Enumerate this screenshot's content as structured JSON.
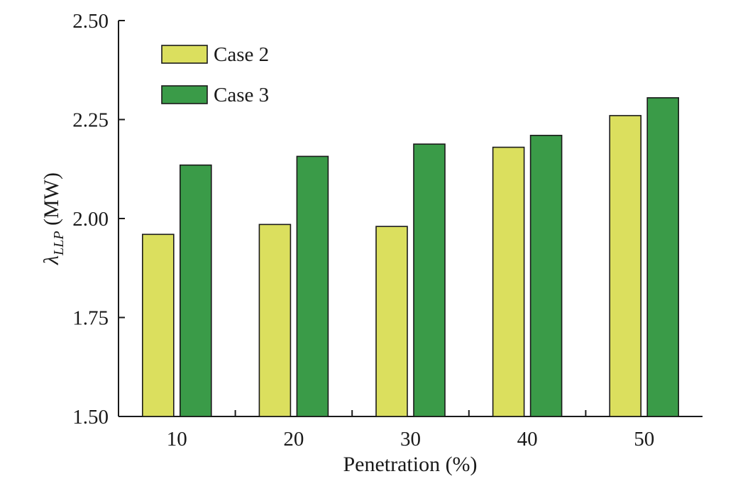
{
  "chart_data": {
    "type": "bar",
    "title": "",
    "xlabel": "Penetration (%)",
    "ylabel": {
      "symbol": "λ",
      "subscript": "LLP",
      "unit": " (MW)"
    },
    "categories": [
      "10",
      "20",
      "30",
      "40",
      "50"
    ],
    "ylim": [
      1.5,
      2.5
    ],
    "yticks": [
      "1.50",
      "1.75",
      "2.00",
      "2.25",
      "2.50"
    ],
    "grid": false,
    "legend_position": "top-left",
    "series": [
      {
        "name": "Case 2",
        "color": "#dbdf5e",
        "values": [
          1.96,
          1.985,
          1.98,
          2.18,
          2.26
        ]
      },
      {
        "name": "Case 3",
        "color": "#3a9b48",
        "values": [
          2.135,
          2.157,
          2.188,
          2.21,
          2.305
        ]
      }
    ]
  }
}
